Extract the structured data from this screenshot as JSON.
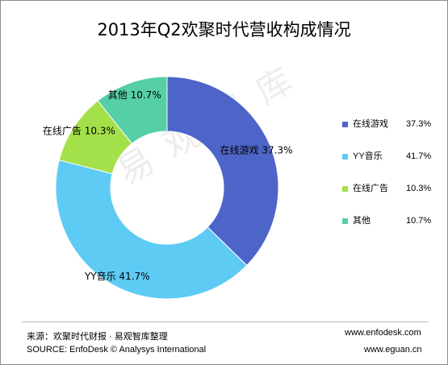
{
  "chart_data": {
    "type": "pie",
    "style": "donut",
    "title": "2013年Q2欢聚时代营收构成情况",
    "categories": [
      "在线游戏",
      "YY音乐",
      "在线广告",
      "其他"
    ],
    "values": [
      37.3,
      41.7,
      10.3,
      10.7
    ],
    "data_labels": [
      "37.3%",
      "41.7%",
      "10.3%",
      "10.7%"
    ],
    "colors": [
      "#4d64c8",
      "#5ecbf5",
      "#a4e04a",
      "#56cfa6"
    ],
    "legend": "right"
  },
  "watermark": "易观智库",
  "footer": {
    "source_cn": "来源：欢聚时代财报 · 易观智库整理",
    "source_en": "SOURCE: EnfoDesk © Analysys International",
    "url1": "www.enfodesk.com",
    "url2": "www.eguan.cn"
  }
}
